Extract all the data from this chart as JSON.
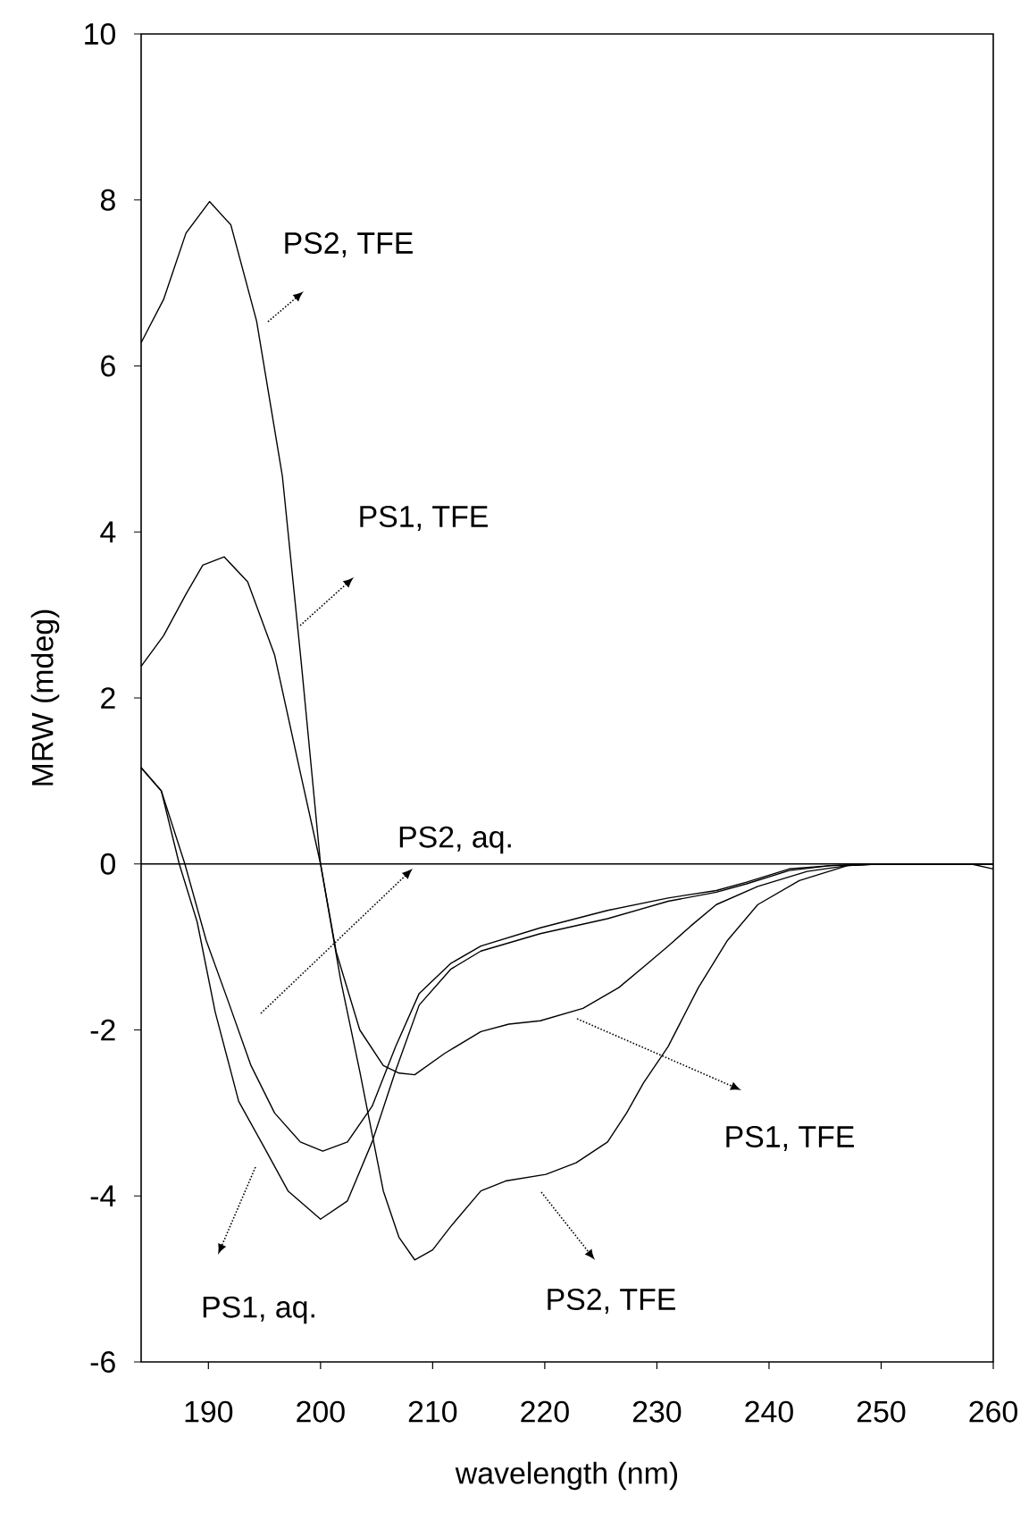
{
  "chart_data": {
    "type": "line",
    "xlabel": "wavelength (nm)",
    "ylabel": "MRW (mdeg)",
    "xlim": [
      184,
      260
    ],
    "ylim": [
      -6,
      10
    ],
    "xticks": [
      190,
      200,
      210,
      220,
      230,
      240,
      250,
      260
    ],
    "yticks": [
      -6,
      -4,
      -2,
      0,
      2,
      4,
      6,
      8,
      10
    ],
    "grid": false,
    "marker": "none",
    "line_style": "solid",
    "ref_lines": [
      {
        "axis": "y",
        "value": 0,
        "color": "#000000"
      }
    ],
    "series": [
      {
        "color": "#000000",
        "x": [
          184,
          186,
          188,
          190.1,
          192,
          194.3,
          196.6,
          198.3,
          200,
          201.8,
          203.5,
          205.6,
          207,
          208.4,
          210,
          211.6,
          214.3,
          216.5,
          220.1,
          222.8,
          225.6,
          227.3,
          228.8,
          231,
          233.7,
          236.3,
          239,
          242.7,
          247,
          250,
          255,
          258,
          260
        ],
        "values": [
          6.28,
          6.8,
          7.6,
          7.98,
          7.7,
          6.54,
          4.67,
          2.4,
          0,
          -1.4,
          -2.5,
          -3.94,
          -4.5,
          -4.77,
          -4.65,
          -4.37,
          -3.94,
          -3.82,
          -3.74,
          -3.6,
          -3.35,
          -3.0,
          -2.64,
          -2.2,
          -1.49,
          -0.92,
          -0.49,
          -0.2,
          -0.02,
          0,
          0,
          0,
          -0.06
        ]
      },
      {
        "color": "#000000",
        "x": [
          184,
          186,
          188,
          189.5,
          191.4,
          193.5,
          195.9,
          198.2,
          200,
          201.4,
          203.5,
          205.6,
          207,
          208.4,
          211.1,
          214.3,
          216.8,
          219.6,
          223.4,
          226.6,
          229,
          231,
          233,
          235.3,
          239,
          243.4,
          247,
          250,
          260
        ],
        "values": [
          2.38,
          2.75,
          3.25,
          3.6,
          3.7,
          3.4,
          2.52,
          1.1,
          0,
          -1.06,
          -2.0,
          -2.43,
          -2.52,
          -2.54,
          -2.28,
          -2.02,
          -1.93,
          -1.89,
          -1.74,
          -1.49,
          -1.22,
          -0.99,
          -0.75,
          -0.49,
          -0.27,
          -0.09,
          -0.02,
          0,
          0
        ]
      },
      {
        "color": "#000000",
        "x": [
          184,
          185.8,
          187.4,
          189,
          190.6,
          192.7,
          195,
          197.1,
          200,
          202.4,
          204.6,
          206.7,
          208.8,
          211.6,
          214.3,
          219.6,
          225.6,
          231,
          235.3,
          238,
          241.8,
          245.5,
          250,
          260
        ],
        "values": [
          1.16,
          0.88,
          0,
          -0.7,
          -1.78,
          -2.86,
          -3.42,
          -3.94,
          -4.28,
          -4.06,
          -3.35,
          -2.49,
          -1.7,
          -1.27,
          -1.05,
          -0.84,
          -0.66,
          -0.45,
          -0.34,
          -0.24,
          -0.08,
          -0.02,
          0,
          0
        ]
      },
      {
        "color": "#000000",
        "x": [
          184,
          185.8,
          187.9,
          189.8,
          191.7,
          193.8,
          195.9,
          198.2,
          200.2,
          202.4,
          204.6,
          206.7,
          208.8,
          211.6,
          214.3,
          219.6,
          225.6,
          231,
          235.3,
          238,
          241.8,
          245.5,
          250,
          260
        ],
        "values": [
          1.16,
          0.88,
          0,
          -0.92,
          -1.63,
          -2.43,
          -3.0,
          -3.35,
          -3.46,
          -3.35,
          -2.92,
          -2.2,
          -1.56,
          -1.2,
          -0.99,
          -0.77,
          -0.56,
          -0.41,
          -0.32,
          -0.22,
          -0.06,
          -0.02,
          0,
          0
        ]
      }
    ],
    "annotations": [
      "PS2, TFE",
      "PS1, TFE",
      "PS2, aq.",
      "PS1, aq.",
      "PS1, TFE",
      "PS2, TFE"
    ]
  }
}
